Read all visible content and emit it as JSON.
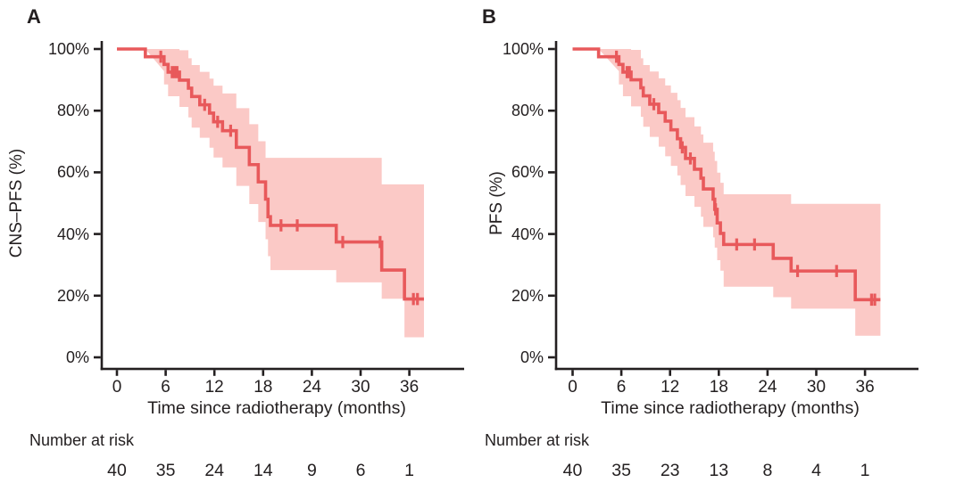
{
  "figure": {
    "background": "#ffffff",
    "axis_color": "#231f20",
    "text_color": "#231f20",
    "grid": "off",
    "legend": "none"
  },
  "chart_data": [
    {
      "type": "line",
      "subtype": "kaplan-meier-step-with-confidence-band",
      "panel": "A",
      "ylabel": "CNS–PFS (%)",
      "xlabel": "Time since radiotherapy (months)",
      "risk_label": "Number at risk",
      "xlim": [
        0,
        43
      ],
      "ylim": [
        0,
        100
      ],
      "x_tick_values": [
        0,
        6,
        12,
        18,
        24,
        30,
        36
      ],
      "x_tick_labels": [
        "0",
        "6",
        "12",
        "18",
        "24",
        "30",
        "36"
      ],
      "y_tick_values": [
        0,
        20,
        40,
        60,
        80,
        100
      ],
      "y_tick_labels": [
        "0%",
        "20%",
        "40%",
        "60%",
        "80%",
        "100%"
      ],
      "line_color": "#e8595b",
      "band_color": "#fbc9c6",
      "end_time": 37.8,
      "steps": [
        [
          0,
          100
        ],
        [
          3.5,
          97.5
        ],
        [
          5.8,
          95.0
        ],
        [
          6.3,
          92.5
        ],
        [
          7.7,
          89.9
        ],
        [
          8.8,
          87.3
        ],
        [
          9.2,
          84.6
        ],
        [
          10.2,
          81.9
        ],
        [
          11.4,
          79.2
        ],
        [
          11.9,
          76.4
        ],
        [
          13.0,
          73.5
        ],
        [
          14.7,
          68.1
        ],
        [
          16.3,
          62.5
        ],
        [
          17.4,
          56.9
        ],
        [
          18.3,
          51.3
        ],
        [
          18.6,
          45.6
        ],
        [
          18.9,
          42.8
        ],
        [
          27.0,
          37.4
        ],
        [
          32.6,
          28.3
        ],
        [
          35.4,
          18.9
        ]
      ],
      "censors": [
        [
          5.4,
          97.5
        ],
        [
          6.8,
          92.5
        ],
        [
          7.1,
          92.5
        ],
        [
          7.4,
          92.5
        ],
        [
          10.8,
          81.9
        ],
        [
          12.4,
          76.4
        ],
        [
          14.0,
          73.5
        ],
        [
          20.2,
          42.8
        ],
        [
          22.2,
          42.8
        ],
        [
          27.8,
          37.4
        ],
        [
          32.4,
          37.4
        ],
        [
          36.5,
          18.9
        ],
        [
          37.0,
          18.9
        ]
      ],
      "ci": [
        [
          0,
          100,
          100
        ],
        [
          3.5,
          92.8,
          100
        ],
        [
          5.8,
          88.5,
          100
        ],
        [
          6.3,
          84.7,
          100
        ],
        [
          7.7,
          81.2,
          99.6
        ],
        [
          8.8,
          77.8,
          97.0
        ],
        [
          9.2,
          74.5,
          94.8
        ],
        [
          10.2,
          71.2,
          92.6
        ],
        [
          11.4,
          68.0,
          90.4
        ],
        [
          11.9,
          64.8,
          88.1
        ],
        [
          13.0,
          61.6,
          85.6
        ],
        [
          14.7,
          55.6,
          80.8
        ],
        [
          16.3,
          49.7,
          75.6
        ],
        [
          17.4,
          43.9,
          70.1
        ],
        [
          18.3,
          38.3,
          64.7
        ],
        [
          18.6,
          32.8,
          64.7
        ],
        [
          18.9,
          28.3,
          64.7
        ],
        [
          27.0,
          24.3,
          64.7
        ],
        [
          32.6,
          19.0,
          56.1
        ],
        [
          35.4,
          6.5,
          56.1
        ]
      ],
      "number_at_risk": {
        "times": [
          0,
          6,
          12,
          18,
          24,
          30,
          36
        ],
        "counts": [
          "40",
          "35",
          "24",
          "14",
          "9",
          "6",
          "1"
        ]
      }
    },
    {
      "type": "line",
      "subtype": "kaplan-meier-step-with-confidence-band",
      "panel": "B",
      "ylabel": "PFS (%)",
      "xlabel": "Time since radiotherapy (months)",
      "risk_label": "Number at risk",
      "xlim": [
        0,
        43
      ],
      "ylim": [
        0,
        100
      ],
      "x_tick_values": [
        0,
        6,
        12,
        18,
        24,
        30,
        36
      ],
      "x_tick_labels": [
        "0",
        "6",
        "12",
        "18",
        "24",
        "30",
        "36"
      ],
      "y_tick_values": [
        0,
        20,
        40,
        60,
        80,
        100
      ],
      "y_tick_labels": [
        "0%",
        "20%",
        "40%",
        "60%",
        "80%",
        "100%"
      ],
      "line_color": "#e8595b",
      "band_color": "#fbc9c6",
      "end_time": 37.9,
      "steps": [
        [
          0,
          100
        ],
        [
          3.2,
          97.5
        ],
        [
          5.7,
          95.0
        ],
        [
          6.2,
          92.5
        ],
        [
          7.2,
          90.0
        ],
        [
          8.4,
          87.4
        ],
        [
          8.7,
          84.8
        ],
        [
          9.5,
          82.1
        ],
        [
          10.6,
          79.4
        ],
        [
          11.4,
          76.6
        ],
        [
          12.1,
          73.8
        ],
        [
          12.9,
          70.9
        ],
        [
          13.3,
          68.1
        ],
        [
          13.9,
          64.5
        ],
        [
          15.0,
          61.0
        ],
        [
          15.8,
          58.1
        ],
        [
          16.1,
          54.6
        ],
        [
          17.3,
          51.3
        ],
        [
          17.5,
          48.0
        ],
        [
          17.8,
          43.6
        ],
        [
          18.2,
          40.2
        ],
        [
          18.6,
          36.6
        ],
        [
          24.7,
          32.1
        ],
        [
          26.9,
          28.0
        ],
        [
          34.8,
          18.7
        ]
      ],
      "censors": [
        [
          5.4,
          97.5
        ],
        [
          6.7,
          92.5
        ],
        [
          7.0,
          92.5
        ],
        [
          10.0,
          82.1
        ],
        [
          13.5,
          68.1
        ],
        [
          14.5,
          64.5
        ],
        [
          17.6,
          48.0
        ],
        [
          20.2,
          36.6
        ],
        [
          22.4,
          36.6
        ],
        [
          27.7,
          28.0
        ],
        [
          32.5,
          28.0
        ],
        [
          36.8,
          18.7
        ],
        [
          37.2,
          18.7
        ]
      ],
      "ci": [
        [
          0,
          100,
          100
        ],
        [
          3.2,
          92.8,
          100
        ],
        [
          5.7,
          88.5,
          100
        ],
        [
          6.2,
          84.7,
          100
        ],
        [
          7.2,
          81.4,
          99.7
        ],
        [
          8.4,
          78.0,
          97.0
        ],
        [
          8.7,
          74.8,
          94.8
        ],
        [
          9.5,
          71.5,
          92.7
        ],
        [
          10.6,
          68.3,
          90.5
        ],
        [
          11.4,
          65.2,
          88.2
        ],
        [
          12.1,
          62.1,
          85.8
        ],
        [
          12.9,
          59.0,
          83.4
        ],
        [
          13.3,
          55.9,
          80.9
        ],
        [
          13.9,
          52.3,
          77.9
        ],
        [
          15.0,
          48.8,
          74.9
        ],
        [
          15.8,
          45.6,
          72.3
        ],
        [
          16.1,
          42.3,
          69.6
        ],
        [
          17.3,
          38.9,
          66.7
        ],
        [
          17.5,
          35.6,
          63.7
        ],
        [
          17.8,
          31.5,
          59.9
        ],
        [
          18.2,
          28.1,
          56.6
        ],
        [
          18.6,
          22.9,
          52.9
        ],
        [
          24.7,
          19.5,
          52.9
        ],
        [
          26.9,
          15.8,
          49.8
        ],
        [
          34.8,
          7.0,
          49.8
        ]
      ],
      "number_at_risk": {
        "times": [
          0,
          6,
          12,
          18,
          24,
          30,
          36
        ],
        "counts": [
          "40",
          "35",
          "23",
          "13",
          "8",
          "4",
          "1"
        ]
      }
    }
  ]
}
